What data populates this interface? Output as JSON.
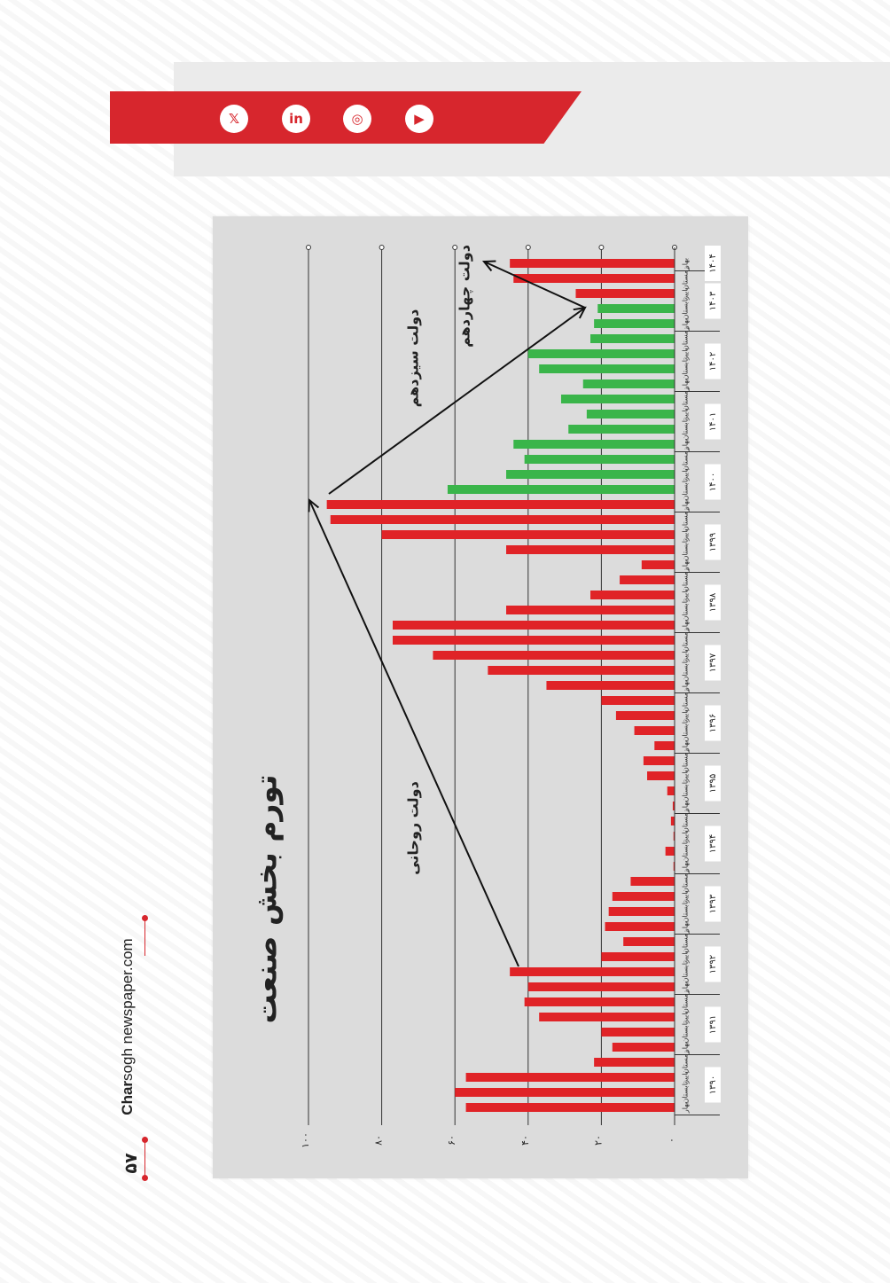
{
  "social": [
    {
      "icon": "x-icon",
      "glyph": "𝕏"
    },
    {
      "icon": "linkedin-icon",
      "glyph": "in"
    },
    {
      "icon": "instagram-icon",
      "glyph": "◎"
    },
    {
      "icon": "youtube-icon",
      "glyph": "▶"
    }
  ],
  "brand": {
    "bold": "Char",
    "rest": "sogh newspaper.com"
  },
  "page_number": "۵۷",
  "chart_data": {
    "type": "bar",
    "title": "تورم بخش صنعت",
    "orientation": "rotated-90",
    "ylim": [
      0,
      100
    ],
    "y_ticks": [
      "۰",
      "۲۰",
      "۴۰",
      "۶۰",
      "۸۰",
      "۱۰۰"
    ],
    "years": [
      "۱۳۹۰",
      "۱۳۹۱",
      "۱۳۹۲",
      "۱۳۹۳",
      "۱۳۹۴",
      "۱۳۹۵",
      "۱۳۹۶",
      "۱۳۹۷",
      "۱۳۹۸",
      "۱۳۹۹",
      "۱۴۰۰",
      "۱۴۰۱",
      "۱۴۰۲",
      "۱۴۰۳",
      "۱۴۰۴"
    ],
    "seasons": [
      "بهار",
      "تابستان",
      "پاییز",
      "زمستان"
    ],
    "values": [
      57,
      60,
      57,
      22,
      17,
      20,
      37,
      41,
      40,
      45,
      20,
      14,
      19,
      18,
      17,
      12,
      0.3,
      2.5,
      0.3,
      1,
      0.5,
      2,
      7.5,
      8.5,
      5.5,
      11,
      16,
      20,
      35,
      51,
      66,
      77,
      77,
      46,
      23,
      15,
      9,
      46,
      80,
      94,
      95,
      62,
      46,
      41,
      44,
      29,
      24,
      31,
      25,
      37,
      40,
      23,
      22,
      21,
      27,
      44,
      45
    ],
    "colors": [
      "r",
      "r",
      "r",
      "r",
      "r",
      "r",
      "r",
      "r",
      "r",
      "r",
      "r",
      "r",
      "r",
      "r",
      "r",
      "r",
      "r",
      "r",
      "r",
      "r",
      "r",
      "r",
      "r",
      "r",
      "r",
      "r",
      "r",
      "r",
      "r",
      "r",
      "r",
      "r",
      "r",
      "r",
      "r",
      "r",
      "r",
      "r",
      "r",
      "r",
      "r",
      "g",
      "g",
      "g",
      "g",
      "g",
      "g",
      "g",
      "g",
      "g",
      "g",
      "g",
      "g",
      "g",
      "r",
      "r",
      "r"
    ],
    "series_colors": {
      "r": "#e02327",
      "g": "#3ab54a"
    },
    "annotations": [
      "دولت روحانی",
      "دولت سیزدهم",
      "دولت چهاردهم"
    ]
  }
}
